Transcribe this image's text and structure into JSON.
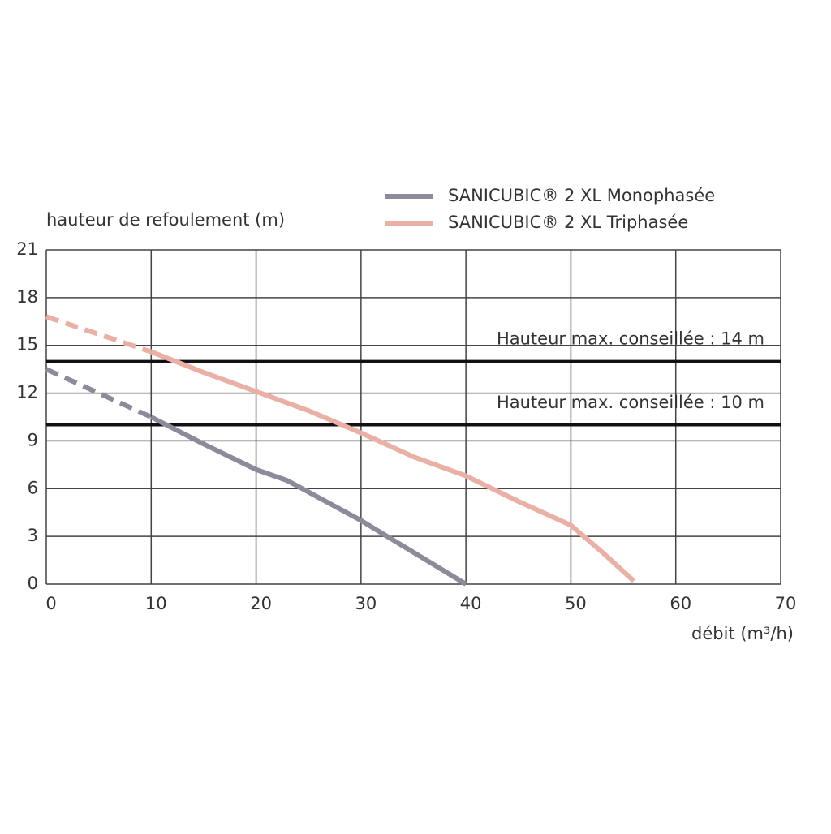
{
  "chart_data": {
    "type": "line",
    "y_label": "hauteur de refoulement (m)",
    "x_label": "débit (m³/h)",
    "xlim": [
      0,
      70
    ],
    "xticks": [
      0,
      10,
      20,
      30,
      40,
      50,
      60,
      70
    ],
    "ylim": [
      0,
      21
    ],
    "yticks": [
      0,
      3,
      6,
      9,
      12,
      15,
      18,
      21
    ],
    "grid": true,
    "legend": "top-right",
    "series": [
      {
        "name": "SANICUBIC® 2 XL Monophasée",
        "color": "#8e8a9a",
        "dashed_until_x": 10,
        "x": [
          0,
          5,
          10,
          15,
          20,
          23,
          30,
          35,
          40
        ],
        "values": [
          13.5,
          12,
          10.5,
          8.8,
          7.2,
          6.5,
          4,
          2,
          0
        ]
      },
      {
        "name": "SANICUBIC® 2 XL Triphasée",
        "color": "#eab0a6",
        "dashed_until_x": 10,
        "x": [
          0,
          5,
          10,
          15,
          20,
          25,
          30,
          35,
          40,
          45,
          50,
          53,
          56
        ],
        "values": [
          16.8,
          15.7,
          14.6,
          13.3,
          12.1,
          10.9,
          9.5,
          8,
          6.8,
          5.2,
          3.7,
          2,
          0.2
        ]
      }
    ],
    "reference_lines": [
      {
        "value": 14,
        "label": "Hauteur max. conseillée : 14 m"
      },
      {
        "value": 10,
        "label": "Hauteur max. conseillée : 10 m"
      }
    ]
  }
}
